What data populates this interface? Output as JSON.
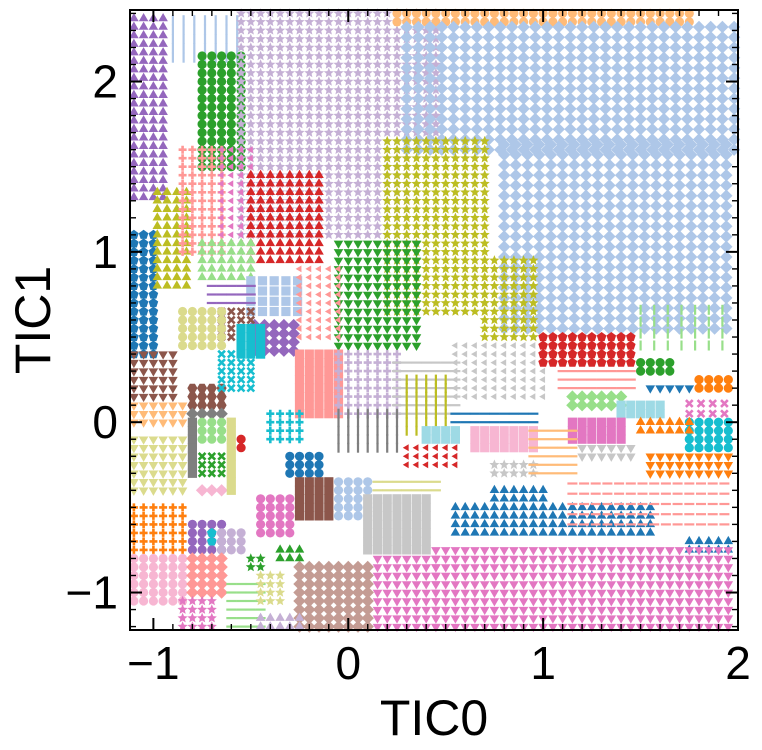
{
  "chart_data": {
    "type": "scatter",
    "title": "",
    "xlabel": "TIC0",
    "ylabel": "TIC1",
    "xlim": [
      -1.12,
      2.0
    ],
    "ylim": [
      -1.22,
      2.42
    ],
    "xticks": [
      -1,
      0,
      1,
      2
    ],
    "xtick_labels": [
      "−1",
      "0",
      "1",
      "2"
    ],
    "yticks": [
      -1,
      0,
      1,
      2
    ],
    "ytick_labels": [
      "−1",
      "0",
      "1",
      "2"
    ],
    "grid": false,
    "legend": "none",
    "regions": [
      {
        "marker": "triangle-up",
        "color": "#9467bd",
        "x": [
          -1.1,
          -0.93
        ],
        "y": [
          1.32,
          2.4
        ],
        "step": 0.05
      },
      {
        "marker": "vline",
        "color": "#aec7e8",
        "x": [
          -0.9,
          -0.55
        ],
        "y": [
          2.14,
          2.4
        ],
        "step": 0.055
      },
      {
        "marker": "circle",
        "color": "#2ca02c",
        "x": [
          -0.75,
          -0.55
        ],
        "y": [
          1.5,
          2.15
        ],
        "step": 0.05
      },
      {
        "marker": "star",
        "color": "#c5b0d5",
        "x": [
          -0.55,
          0.3
        ],
        "y": [
          1.1,
          2.4
        ],
        "step": 0.05
      },
      {
        "marker": "star",
        "color": "#c5b0d5",
        "x": [
          0.3,
          0.45
        ],
        "y": [
          1.6,
          2.4
        ],
        "step": 0.05
      },
      {
        "marker": "circle",
        "color": "#ffbb78",
        "x": [
          0.25,
          1.75
        ],
        "y": [
          2.35,
          2.42
        ],
        "step": 0.05
      },
      {
        "marker": "diamond",
        "color": "#aec7e8",
        "x": [
          0.3,
          2.0
        ],
        "y": [
          1.6,
          2.32
        ],
        "step": 0.06
      },
      {
        "marker": "diamond",
        "color": "#aec7e8",
        "x": [
          0.8,
          2.0
        ],
        "y": [
          0.55,
          1.6
        ],
        "step": 0.06
      },
      {
        "marker": "pentagon",
        "color": "#1f77b4",
        "x": [
          -1.1,
          -0.98
        ],
        "y": [
          0.4,
          1.1
        ],
        "step": 0.05
      },
      {
        "marker": "triangle-up",
        "color": "#bcbd22",
        "x": [
          -0.98,
          -0.85
        ],
        "y": [
          0.8,
          1.35
        ],
        "step": 0.05
      },
      {
        "marker": "plus",
        "color": "#ff9896",
        "x": [
          -0.85,
          -0.65
        ],
        "y": [
          1.0,
          1.6
        ],
        "step": 0.05
      },
      {
        "marker": "tri-left",
        "color": "#e377c2",
        "x": [
          -0.65,
          -0.5
        ],
        "y": [
          1.0,
          1.6
        ],
        "step": 0.05
      },
      {
        "marker": "triangle-up",
        "color": "#d62728",
        "x": [
          -0.5,
          -0.15
        ],
        "y": [
          0.95,
          1.45
        ],
        "step": 0.05
      },
      {
        "marker": "star",
        "color": "#bcbd22",
        "x": [
          0.2,
          0.7
        ],
        "y": [
          0.65,
          1.65
        ],
        "step": 0.05
      },
      {
        "marker": "star",
        "color": "#bcbd22",
        "x": [
          0.7,
          0.95
        ],
        "y": [
          0.5,
          0.95
        ],
        "step": 0.05
      },
      {
        "marker": "triangle-down",
        "color": "#2ca02c",
        "x": [
          -0.05,
          0.35
        ],
        "y": [
          0.45,
          1.05
        ],
        "step": 0.05
      },
      {
        "marker": "triangle-up",
        "color": "#98df8a",
        "x": [
          -0.75,
          -0.5
        ],
        "y": [
          0.85,
          1.05
        ],
        "step": 0.05
      },
      {
        "marker": "square",
        "color": "#aec7e8",
        "x": [
          -0.5,
          -0.28
        ],
        "y": [
          0.65,
          0.85
        ],
        "step": 0.06
      },
      {
        "marker": "tri-left",
        "color": "#ff9896",
        "x": [
          -0.25,
          -0.05
        ],
        "y": [
          0.5,
          0.9
        ],
        "step": 0.05
      },
      {
        "marker": "diamond",
        "color": "#9467bd",
        "x": [
          -0.48,
          -0.3
        ],
        "y": [
          0.42,
          0.58
        ],
        "step": 0.05
      },
      {
        "marker": "hline",
        "color": "#9467bd",
        "x": [
          -0.7,
          -0.5
        ],
        "y": [
          0.7,
          0.8
        ],
        "step": 0.05
      },
      {
        "marker": "cross",
        "color": "#8c564b",
        "x": [
          -0.65,
          -0.5
        ],
        "y": [
          0.5,
          0.65
        ],
        "step": 0.05
      },
      {
        "marker": "circle",
        "color": "#dbdb8d",
        "x": [
          -0.85,
          -0.65
        ],
        "y": [
          0.45,
          0.65
        ],
        "step": 0.05
      },
      {
        "marker": "square",
        "color": "#17becf",
        "x": [
          -0.55,
          -0.45
        ],
        "y": [
          0.4,
          0.55
        ],
        "step": 0.05
      },
      {
        "marker": "triangle-down",
        "color": "#8c564b",
        "x": [
          -1.1,
          -0.88
        ],
        "y": [
          0.15,
          0.42
        ],
        "step": 0.05
      },
      {
        "marker": "hexagon",
        "color": "#8c564b",
        "x": [
          -0.8,
          -0.65
        ],
        "y": [
          0.1,
          0.2
        ],
        "step": 0.05
      },
      {
        "marker": "cross",
        "color": "#17becf",
        "x": [
          -0.65,
          -0.5
        ],
        "y": [
          0.2,
          0.4
        ],
        "step": 0.05
      },
      {
        "marker": "square",
        "color": "#ff9896",
        "x": [
          -0.25,
          -0.05
        ],
        "y": [
          0.05,
          0.42
        ],
        "step": 0.05
      },
      {
        "marker": "plus",
        "color": "#c5b0d5",
        "x": [
          -0.05,
          0.25
        ],
        "y": [
          0.05,
          0.4
        ],
        "step": 0.05
      },
      {
        "marker": "hline",
        "color": "#c7c7c7",
        "x": [
          0.25,
          0.55
        ],
        "y": [
          0.05,
          0.35
        ],
        "step": 0.05
      },
      {
        "marker": "tri-left",
        "color": "#c7c7c7",
        "x": [
          0.55,
          1.0
        ],
        "y": [
          0.15,
          0.45
        ],
        "step": 0.05
      },
      {
        "marker": "vline",
        "color": "#bcbd22",
        "x": [
          0.3,
          0.5
        ],
        "y": [
          -0.05,
          0.25
        ],
        "step": 0.05
      },
      {
        "marker": "pentagon",
        "color": "#d62728",
        "x": [
          1.0,
          1.45
        ],
        "y": [
          0.35,
          0.5
        ],
        "step": 0.05
      },
      {
        "marker": "circle",
        "color": "#2ca02c",
        "x": [
          1.5,
          1.65
        ],
        "y": [
          0.3,
          0.35
        ],
        "step": 0.05
      },
      {
        "marker": "vline",
        "color": "#98df8a",
        "x": [
          1.5,
          2.0
        ],
        "y": [
          0.45,
          0.65
        ],
        "step": 0.07
      },
      {
        "marker": "hline",
        "color": "#ff9896",
        "x": [
          1.1,
          1.45
        ],
        "y": [
          0.2,
          0.3
        ],
        "step": 0.05
      },
      {
        "marker": "triangle-down",
        "color": "#1f77b4",
        "x": [
          1.55,
          1.75
        ],
        "y": [
          0.2,
          0.22
        ],
        "step": 0.05
      },
      {
        "marker": "circle",
        "color": "#ff7f0e",
        "x": [
          1.8,
          2.0
        ],
        "y": [
          0.2,
          0.25
        ],
        "step": 0.05
      },
      {
        "marker": "diamond",
        "color": "#98df8a",
        "x": [
          1.15,
          1.4
        ],
        "y": [
          0.1,
          0.15
        ],
        "step": 0.05
      },
      {
        "marker": "square",
        "color": "#9edae5",
        "x": [
          1.4,
          1.6
        ],
        "y": [
          0.05,
          0.1
        ],
        "step": 0.05
      },
      {
        "marker": "cross",
        "color": "#e377c2",
        "x": [
          1.75,
          2.0
        ],
        "y": [
          0.05,
          0.1
        ],
        "step": 0.06
      },
      {
        "marker": "circle",
        "color": "#17becf",
        "x": [
          1.75,
          2.0
        ],
        "y": [
          -0.15,
          0.0
        ],
        "step": 0.05
      },
      {
        "marker": "triangle-up",
        "color": "#ff7f0e",
        "x": [
          1.5,
          1.75
        ],
        "y": [
          -0.05,
          0.0
        ],
        "step": 0.05
      },
      {
        "marker": "triangle-down",
        "color": "#ff7f0e",
        "x": [
          1.55,
          2.0
        ],
        "y": [
          -0.3,
          -0.2
        ],
        "step": 0.05
      },
      {
        "marker": "square",
        "color": "#e377c2",
        "x": [
          1.15,
          1.4
        ],
        "y": [
          -0.1,
          0.0
        ],
        "step": 0.05
      },
      {
        "marker": "triangle-down",
        "color": "#c7c7c7",
        "x": [
          1.2,
          1.45
        ],
        "y": [
          -0.2,
          -0.15
        ],
        "step": 0.05
      },
      {
        "marker": "triangle-down",
        "color": "#ffbb78",
        "x": [
          -1.1,
          -0.85
        ],
        "y": [
          0.0,
          0.1
        ],
        "step": 0.05
      },
      {
        "marker": "triangle-down",
        "color": "#dbdb8d",
        "x": [
          -1.1,
          -0.85
        ],
        "y": [
          -0.4,
          -0.1
        ],
        "step": 0.05
      },
      {
        "marker": "diamond",
        "color": "#7f7f7f",
        "x": [
          -0.8,
          -0.65
        ],
        "y": [
          0.05,
          0.05
        ],
        "step": 0.05
      },
      {
        "marker": "square",
        "color": "#7f7f7f",
        "x": [
          -0.8,
          -0.8
        ],
        "y": [
          -0.3,
          0.0
        ],
        "step": 0.05
      },
      {
        "marker": "circle",
        "color": "#98df8a",
        "x": [
          -0.75,
          -0.65
        ],
        "y": [
          -0.1,
          0.0
        ],
        "step": 0.05
      },
      {
        "marker": "cross",
        "color": "#2ca02c",
        "x": [
          -0.75,
          -0.65
        ],
        "y": [
          -0.3,
          -0.2
        ],
        "step": 0.05
      },
      {
        "marker": "diamond",
        "color": "#f7b6d2",
        "x": [
          -0.75,
          -0.65
        ],
        "y": [
          -0.4,
          -0.4
        ],
        "step": 0.05
      },
      {
        "marker": "square",
        "color": "#dbdb8d",
        "x": [
          -0.6,
          -0.6
        ],
        "y": [
          -0.4,
          0.0
        ],
        "step": 0.05
      },
      {
        "marker": "circle",
        "color": "#d62728",
        "x": [
          -0.55,
          -0.55
        ],
        "y": [
          -0.15,
          -0.1
        ],
        "step": 0.05
      },
      {
        "marker": "plus",
        "color": "#17becf",
        "x": [
          -0.4,
          -0.25
        ],
        "y": [
          -0.1,
          0.05
        ],
        "step": 0.05
      },
      {
        "marker": "circle",
        "color": "#1f77b4",
        "x": [
          -0.3,
          -0.15
        ],
        "y": [
          -0.3,
          -0.2
        ],
        "step": 0.05
      },
      {
        "marker": "square",
        "color": "#8c564b",
        "x": [
          -0.25,
          -0.1
        ],
        "y": [
          -0.55,
          -0.35
        ],
        "step": 0.05
      },
      {
        "marker": "circle",
        "color": "#aec7e8",
        "x": [
          -0.05,
          0.1
        ],
        "y": [
          -0.55,
          -0.35
        ],
        "step": 0.05
      },
      {
        "marker": "circle",
        "color": "#e377c2",
        "x": [
          -0.45,
          -0.3
        ],
        "y": [
          -0.65,
          -0.45
        ],
        "step": 0.05
      },
      {
        "marker": "vline",
        "color": "#7f7f7f",
        "x": [
          -0.05,
          0.25
        ],
        "y": [
          -0.15,
          0.05
        ],
        "step": 0.05
      },
      {
        "marker": "square",
        "color": "#9edae5",
        "x": [
          0.4,
          0.55
        ],
        "y": [
          -0.1,
          -0.05
        ],
        "step": 0.05
      },
      {
        "marker": "square",
        "color": "#f7b6d2",
        "x": [
          0.65,
          0.95
        ],
        "y": [
          -0.15,
          -0.05
        ],
        "step": 0.05
      },
      {
        "marker": "tri-left",
        "color": "#d62728",
        "x": [
          0.3,
          0.55
        ],
        "y": [
          -0.25,
          -0.15
        ],
        "step": 0.05
      },
      {
        "marker": "star",
        "color": "#c7c7c7",
        "x": [
          0.75,
          0.95
        ],
        "y": [
          -0.3,
          -0.25
        ],
        "step": 0.05
      },
      {
        "marker": "hline",
        "color": "#1f77b4",
        "x": [
          0.55,
          0.95
        ],
        "y": [
          0.0,
          0.05
        ],
        "step": 0.05
      },
      {
        "marker": "hline",
        "color": "#ffbb78",
        "x": [
          0.95,
          1.15
        ],
        "y": [
          -0.3,
          -0.05
        ],
        "step": 0.05
      },
      {
        "marker": "hline",
        "color": "#dbdb8d",
        "x": [
          0.15,
          0.45
        ],
        "y": [
          -0.4,
          -0.35
        ],
        "step": 0.05
      },
      {
        "marker": "triangle-up",
        "color": "#1f77b4",
        "x": [
          0.75,
          1.0
        ],
        "y": [
          -0.45,
          -0.4
        ],
        "step": 0.05
      },
      {
        "marker": "triangle-up",
        "color": "#1f77b4",
        "x": [
          0.55,
          1.55
        ],
        "y": [
          -0.65,
          -0.5
        ],
        "step": 0.05
      },
      {
        "marker": "triangle-up",
        "color": "#1f77b4",
        "x": [
          1.75,
          2.0
        ],
        "y": [
          -0.75,
          -0.7
        ],
        "step": 0.05
      },
      {
        "marker": "hline",
        "color": "#ff9896",
        "x": [
          1.15,
          2.0
        ],
        "y": [
          -0.6,
          -0.35
        ],
        "step": 0.06
      },
      {
        "marker": "triangle-down",
        "color": "#e377c2",
        "x": [
          0.45,
          2.0
        ],
        "y": [
          -1.2,
          -0.75
        ],
        "step": 0.05
      },
      {
        "marker": "triangle-down",
        "color": "#e377c2",
        "x": [
          0.15,
          0.45
        ],
        "y": [
          -1.2,
          -0.8
        ],
        "step": 0.05
      },
      {
        "marker": "square",
        "color": "#c7c7c7",
        "x": [
          0.1,
          0.4
        ],
        "y": [
          -0.75,
          -0.45
        ],
        "step": 0.05
      },
      {
        "marker": "diamond",
        "color": "#c49c94",
        "x": [
          -0.25,
          0.1
        ],
        "y": [
          -1.2,
          -0.85
        ],
        "step": 0.05
      },
      {
        "marker": "plus",
        "color": "#ff7f0e",
        "x": [
          -1.1,
          -0.85
        ],
        "y": [
          -0.75,
          -0.5
        ],
        "step": 0.05
      },
      {
        "marker": "circle",
        "color": "#9467bd",
        "x": [
          -0.8,
          -0.65
        ],
        "y": [
          -0.75,
          -0.6
        ],
        "step": 0.05
      },
      {
        "marker": "pentagon",
        "color": "#17becf",
        "x": [
          -0.7,
          -0.7
        ],
        "y": [
          -0.7,
          -0.65
        ],
        "step": 0.05
      },
      {
        "marker": "circle",
        "color": "#c5b0d5",
        "x": [
          -0.65,
          -0.55
        ],
        "y": [
          -0.75,
          -0.65
        ],
        "step": 0.05
      },
      {
        "marker": "triangle-up",
        "color": "#2ca02c",
        "x": [
          -0.35,
          -0.25
        ],
        "y": [
          -0.8,
          -0.75
        ],
        "step": 0.05
      },
      {
        "marker": "star",
        "color": "#2ca02c",
        "x": [
          -0.5,
          -0.45
        ],
        "y": [
          -0.85,
          -0.8
        ],
        "step": 0.05
      },
      {
        "marker": "circle",
        "color": "#f7b6d2",
        "x": [
          -1.1,
          -0.85
        ],
        "y": [
          -1.05,
          -0.8
        ],
        "step": 0.05
      },
      {
        "marker": "diamond",
        "color": "#ff9896",
        "x": [
          -0.8,
          -0.65
        ],
        "y": [
          -1.0,
          -0.8
        ],
        "step": 0.05
      },
      {
        "marker": "star",
        "color": "#e377c2",
        "x": [
          -0.85,
          -0.7
        ],
        "y": [
          -1.2,
          -1.05
        ],
        "step": 0.05
      },
      {
        "marker": "hline",
        "color": "#98df8a",
        "x": [
          -0.6,
          -0.45
        ],
        "y": [
          -1.2,
          -0.95
        ],
        "step": 0.05
      },
      {
        "marker": "star",
        "color": "#dbdb8d",
        "x": [
          -0.45,
          -0.35
        ],
        "y": [
          -1.05,
          -0.9
        ],
        "step": 0.05
      },
      {
        "marker": "triangle-up",
        "color": "#c5b0d5",
        "x": [
          -0.45,
          -0.25
        ],
        "y": [
          -1.2,
          -1.15
        ],
        "step": 0.05
      }
    ]
  }
}
